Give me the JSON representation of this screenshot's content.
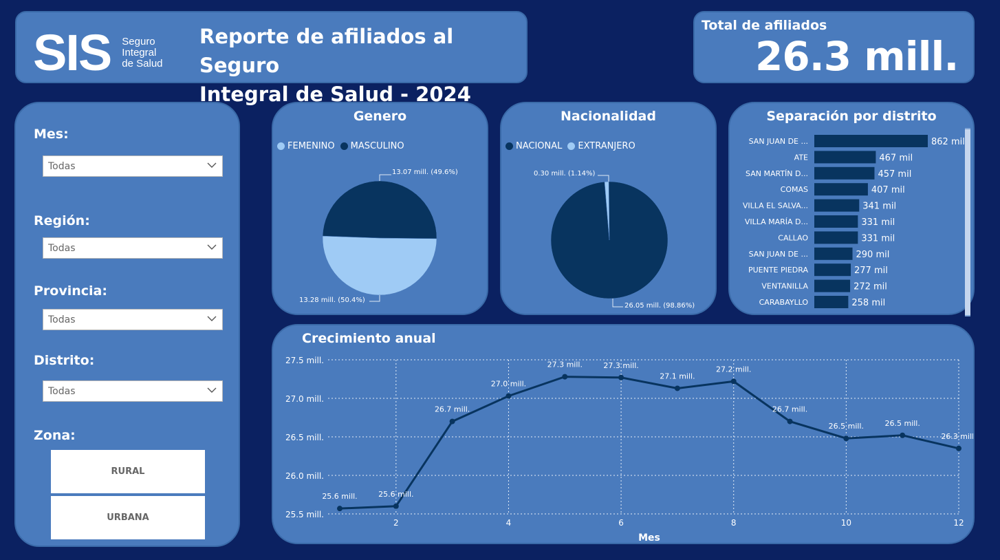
{
  "header": {
    "logo_text": "SIS",
    "logo_subtitle": [
      "Seguro",
      "Integral",
      "de Salud"
    ],
    "title_line1": "Reporte de afiliados al Seguro",
    "title_line2": "Integral de Salud - 2024"
  },
  "total": {
    "label": "Total de afiliados",
    "value": "26.3 mill."
  },
  "filters": {
    "mes": {
      "label": "Mes:",
      "value": "Todas"
    },
    "region": {
      "label": "Región:",
      "value": "Todas"
    },
    "provincia": {
      "label": "Provincia:",
      "value": "Todas"
    },
    "distrito": {
      "label": "Distrito:",
      "value": "Todas"
    },
    "zona": {
      "label": "Zona:",
      "options": [
        "RURAL",
        "URBANA"
      ]
    }
  },
  "colors": {
    "background": "#0b2161",
    "panel": "#4a7bbd",
    "dark_series": "#08345f",
    "light_series": "#9fcbf5"
  },
  "chart_data": [
    {
      "type": "pie",
      "title": "Genero",
      "legend": [
        "FEMENINO",
        "MASCULINO"
      ],
      "slices": [
        {
          "name": "FEMENINO",
          "value": 13.28,
          "label": "13.28 mill. (50.4%)",
          "color": "#9fcbf5"
        },
        {
          "name": "MASCULINO",
          "value": 13.07,
          "label": "13.07 mill. (49.6%)",
          "color": "#08345f"
        }
      ]
    },
    {
      "type": "pie",
      "title": "Nacionalidad",
      "legend": [
        "NACIONAL",
        "EXTRANJERO"
      ],
      "slices": [
        {
          "name": "NACIONAL",
          "value": 26.05,
          "label": "26.05 mill. (98.86%)",
          "color": "#08345f"
        },
        {
          "name": "EXTRANJERO",
          "value": 0.3,
          "label": "0.30 mill. (1.14%)",
          "color": "#9fcbf5"
        }
      ]
    },
    {
      "type": "bar",
      "title": "Separación por distrito",
      "categories": [
        "SAN JUAN DE ...",
        "ATE",
        "SAN MARTÍN D...",
        "COMAS",
        "VILLA EL SALVA...",
        "VILLA MARÍA D...",
        "CALLAO",
        "SAN JUAN DE ...",
        "PUENTE PIEDRA",
        "VENTANILLA",
        "CARABAYLLO"
      ],
      "values": [
        862,
        467,
        457,
        407,
        341,
        331,
        331,
        290,
        277,
        272,
        258
      ],
      "value_labels": [
        "862 mil",
        "467 mil",
        "457 mil",
        "407 mil",
        "341 mil",
        "331 mil",
        "331 mil",
        "290 mil",
        "277 mil",
        "272 mil",
        "258 mil"
      ]
    },
    {
      "type": "line",
      "title": "Crecimiento anual",
      "xlabel": "Mes",
      "ylabel": "",
      "x": [
        1,
        2,
        3,
        4,
        5,
        6,
        7,
        8,
        9,
        10,
        11,
        12
      ],
      "values": [
        25.57,
        25.6,
        26.7,
        27.03,
        27.28,
        27.27,
        27.13,
        27.22,
        26.7,
        26.48,
        26.52,
        26.35
      ],
      "point_labels": [
        "25.6 mill.",
        "25.6 mill.",
        "26.7 mill.",
        "27.0 mill.",
        "27.3 mill.",
        "27.3 mill.",
        "27.1 mill.",
        "27.2 mill.",
        "26.7 mill.",
        "26.5 mill.",
        "26.5 mill.",
        "26.3 mill."
      ],
      "ylim": [
        25.5,
        27.5
      ],
      "yticks": [
        "25.5 mill.",
        "26.0 mill.",
        "26.5 mill.",
        "27.0 mill.",
        "27.5 mill."
      ],
      "xticks": [
        "2",
        "4",
        "6",
        "8",
        "10",
        "12"
      ],
      "grid": true
    }
  ]
}
